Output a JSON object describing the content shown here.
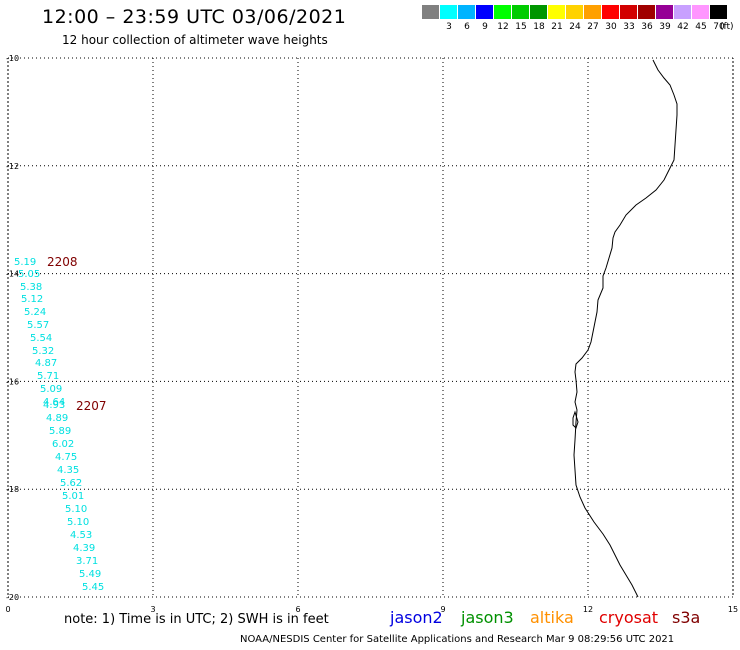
{
  "title": "12:00 – 23:59 UTC 03/06/2021",
  "subtitle": "12 hour collection of altimeter wave heights",
  "legend": {
    "unit": "(ft)",
    "bins": [
      {
        "label": "",
        "color": "#808080"
      },
      {
        "label": "3",
        "color": "#00ffff"
      },
      {
        "label": "6",
        "color": "#00b4ff"
      },
      {
        "label": "9",
        "color": "#0000ff"
      },
      {
        "label": "12",
        "color": "#00ff00"
      },
      {
        "label": "15",
        "color": "#00cc00"
      },
      {
        "label": "18",
        "color": "#009600"
      },
      {
        "label": "21",
        "color": "#ffff00"
      },
      {
        "label": "24",
        "color": "#ffd200"
      },
      {
        "label": "27",
        "color": "#ffa000"
      },
      {
        "label": "30",
        "color": "#ff0000"
      },
      {
        "label": "33",
        "color": "#d20000"
      },
      {
        "label": "36",
        "color": "#a00000"
      },
      {
        "label": "39",
        "color": "#960096"
      },
      {
        "label": "42",
        "color": "#c8a0ff"
      },
      {
        "label": "45",
        "color": "#ff96ff"
      },
      {
        "label": "70",
        "color": "#000000"
      }
    ]
  },
  "map": {
    "x_ticks": [
      "0",
      "3",
      "6",
      "9",
      "12",
      "15"
    ],
    "y_ticks": [
      "10",
      "12",
      "14",
      "16",
      "18",
      "20"
    ],
    "x_range": [
      0,
      15
    ],
    "y_range": [
      10,
      20
    ],
    "pass_color": "#00e0e0",
    "pass_label_color": "#800000",
    "passes": [
      {
        "label": "2208"
      },
      {
        "label": "2207"
      }
    ],
    "observations": [
      {
        "value": "5.19"
      },
      {
        "value": "5.05"
      },
      {
        "value": "5.38"
      },
      {
        "value": "5.12"
      },
      {
        "value": "5.24"
      },
      {
        "value": "5.57"
      },
      {
        "value": "5.54"
      },
      {
        "value": "5.32"
      },
      {
        "value": "4.87"
      },
      {
        "value": "5.71"
      },
      {
        "value": "5.09"
      },
      {
        "value": "4.64"
      },
      {
        "value": "4.93"
      },
      {
        "value": "4.89"
      },
      {
        "value": "5.89"
      },
      {
        "value": "6.02"
      },
      {
        "value": "4.75"
      },
      {
        "value": "4.35"
      },
      {
        "value": "5.62"
      },
      {
        "value": "5.01"
      },
      {
        "value": "5.10"
      },
      {
        "value": "5.10"
      },
      {
        "value": "4.53"
      },
      {
        "value": "4.39"
      },
      {
        "value": "3.71"
      },
      {
        "value": "5.49"
      },
      {
        "value": "5.45"
      }
    ]
  },
  "footer": {
    "note": "note:  1) Time is in UTC;  2) SWH is in feet",
    "satellites": [
      {
        "name": "jason2",
        "color": "#0000e0"
      },
      {
        "name": "jason3",
        "color": "#009000"
      },
      {
        "name": "altika",
        "color": "#ff9000"
      },
      {
        "name": "cryosat",
        "color": "#e00000"
      },
      {
        "name": "s3a",
        "color": "#800000"
      }
    ],
    "credit": "NOAA/NESDIS Center for Satellite Applications and Research    Mar  9 08:29:56 UTC 2021"
  }
}
